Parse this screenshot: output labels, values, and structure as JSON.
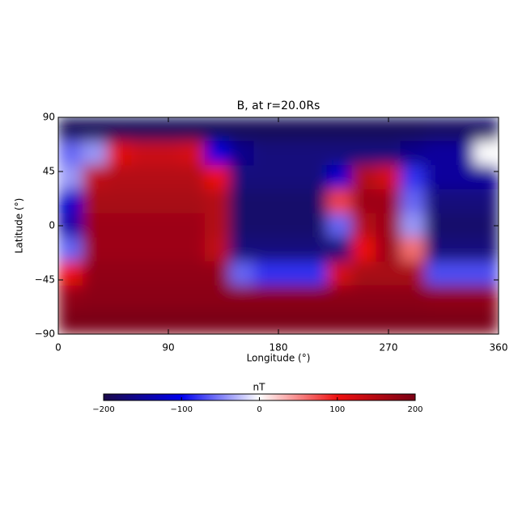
{
  "chart_data": {
    "type": "heatmap",
    "title": "B, at r=20.0Rs",
    "xlabel": "Longitude (°)",
    "ylabel": "Latitude (°)",
    "xlim": [
      0,
      360
    ],
    "xticks": [
      0,
      90,
      180,
      270,
      360
    ],
    "ylim": [
      -90,
      90
    ],
    "yticks": [
      {
        "value": -90,
        "label": "−90"
      },
      {
        "value": -45,
        "label": "−45"
      },
      0,
      45,
      90
    ],
    "x": [
      10,
      30,
      50,
      70,
      90,
      110,
      130,
      150,
      170,
      190,
      210,
      230,
      250,
      270,
      290,
      310,
      330,
      350
    ],
    "y": [
      80,
      60,
      40,
      20,
      0,
      -20,
      -40,
      -60,
      -80
    ],
    "z": [
      [
        -190,
        -190,
        -190,
        -190,
        -190,
        -190,
        -190,
        -190,
        -190,
        -190,
        -190,
        -190,
        -190,
        -190,
        -190,
        -185,
        -185,
        -180
      ],
      [
        -60,
        -40,
        110,
        130,
        130,
        120,
        -110,
        -160,
        -170,
        -170,
        -170,
        -170,
        -170,
        -170,
        -160,
        -150,
        -150,
        0
      ],
      [
        -40,
        140,
        150,
        150,
        150,
        150,
        100,
        -170,
        -170,
        -170,
        -170,
        -120,
        150,
        120,
        -80,
        -150,
        -150,
        -150
      ],
      [
        -120,
        160,
        160,
        160,
        160,
        160,
        150,
        -180,
        -180,
        -180,
        -180,
        80,
        170,
        170,
        -60,
        -170,
        -170,
        -170
      ],
      [
        -140,
        170,
        170,
        170,
        170,
        170,
        150,
        -180,
        -180,
        -180,
        -180,
        -60,
        150,
        170,
        -40,
        -180,
        -180,
        -180
      ],
      [
        -60,
        170,
        170,
        170,
        170,
        170,
        140,
        -170,
        -170,
        -170,
        -170,
        -170,
        100,
        170,
        60,
        -170,
        -170,
        -170
      ],
      [
        100,
        180,
        180,
        180,
        180,
        180,
        180,
        -60,
        -80,
        -80,
        -80,
        120,
        160,
        160,
        160,
        -70,
        -70,
        -70
      ],
      [
        180,
        185,
        185,
        185,
        185,
        185,
        185,
        185,
        185,
        185,
        185,
        185,
        185,
        185,
        185,
        180,
        180,
        180
      ],
      [
        200,
        200,
        200,
        200,
        200,
        200,
        200,
        200,
        200,
        200,
        200,
        200,
        200,
        200,
        200,
        200,
        200,
        200
      ]
    ],
    "colormap": [
      "#1b0a4a",
      "#0000ee",
      "#ffffff",
      "#ee1111",
      "#7a0014"
    ],
    "clim": [
      -200,
      200
    ],
    "colorbar_label": "nT",
    "cticks": [
      {
        "value": -200,
        "label": "−200"
      },
      {
        "value": -100,
        "label": "−100"
      },
      0,
      100,
      200
    ]
  }
}
